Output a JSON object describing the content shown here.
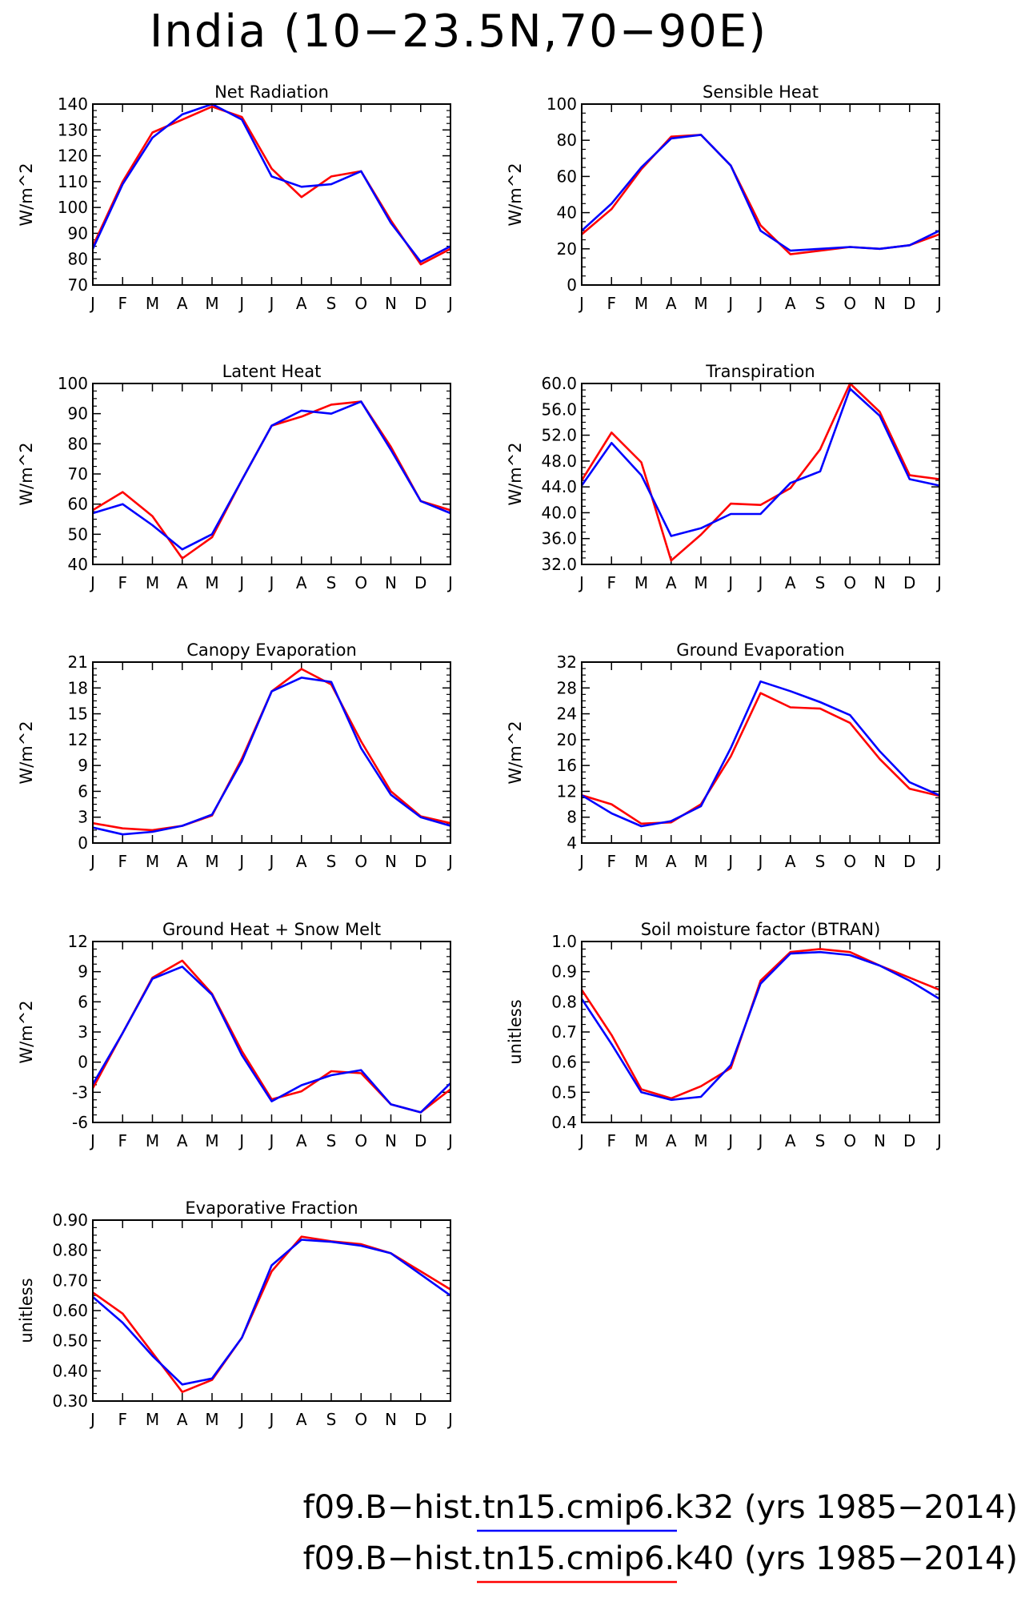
{
  "title": "India (10−23.5N,70−90E)",
  "colors": {
    "series_k32": "#0000ff",
    "series_k40": "#ff0000",
    "axes": "#000000"
  },
  "months": [
    "J",
    "F",
    "M",
    "A",
    "M",
    "J",
    "J",
    "A",
    "S",
    "O",
    "N",
    "D",
    "J"
  ],
  "legend": [
    {
      "label": "f09.B−hist.tn15.cmip6.k32",
      "years": "(yrs 1985−2014)",
      "color": "#0000ff"
    },
    {
      "label": "f09.B−hist.tn15.cmip6.k40",
      "years": "(yrs 1985−2014)",
      "color": "#ff0000"
    }
  ],
  "chart_data": [
    {
      "type": "line",
      "title": "Net Radiation",
      "ylabel": "W/m^2",
      "ylim": [
        70,
        140
      ],
      "yticks": [
        "70",
        "80",
        "90",
        "100",
        "110",
        "120",
        "130",
        "140"
      ],
      "x": [
        "J",
        "F",
        "M",
        "A",
        "M",
        "J",
        "J",
        "A",
        "S",
        "O",
        "N",
        "D",
        "J"
      ],
      "series": [
        {
          "values": [
            85,
            110,
            129,
            134,
            139,
            135,
            115,
            104,
            112,
            114,
            95,
            78,
            84
          ]
        },
        {
          "values": [
            84,
            109,
            127,
            136,
            140,
            134,
            112,
            108,
            109,
            114,
            94,
            79,
            85
          ]
        }
      ]
    },
    {
      "type": "line",
      "title": "Sensible Heat",
      "ylabel": "W/m^2",
      "ylim": [
        0,
        100
      ],
      "yticks": [
        "0",
        "20",
        "40",
        "60",
        "80",
        "100"
      ],
      "x": [
        "J",
        "F",
        "M",
        "A",
        "M",
        "J",
        "J",
        "A",
        "S",
        "O",
        "N",
        "D",
        "J"
      ],
      "series": [
        {
          "values": [
            28,
            42,
            64,
            82,
            83,
            66,
            33,
            17,
            19,
            21,
            20,
            22,
            28
          ]
        },
        {
          "values": [
            30,
            45,
            65,
            81,
            83,
            66,
            30,
            19,
            20,
            21,
            20,
            22,
            30
          ]
        }
      ]
    },
    {
      "type": "line",
      "title": "Latent Heat",
      "ylabel": "W/m^2",
      "ylim": [
        40,
        100
      ],
      "yticks": [
        "40",
        "50",
        "60",
        "70",
        "80",
        "90",
        "100"
      ],
      "x": [
        "J",
        "F",
        "M",
        "A",
        "M",
        "J",
        "J",
        "A",
        "S",
        "O",
        "N",
        "D",
        "J"
      ],
      "series": [
        {
          "values": [
            58,
            64,
            56,
            42,
            49,
            68,
            86,
            89,
            93,
            94,
            79,
            61,
            58
          ]
        },
        {
          "values": [
            57,
            60,
            53,
            45,
            50,
            68,
            86,
            91,
            90,
            94,
            78,
            61,
            57
          ]
        }
      ]
    },
    {
      "type": "line",
      "title": "Transpiration",
      "ylabel": "W/m^2",
      "ylim": [
        32,
        60
      ],
      "yticks": [
        "32.0",
        "36.0",
        "40.0",
        "44.0",
        "48.0",
        "52.0",
        "56.0",
        "60.0"
      ],
      "x": [
        "J",
        "F",
        "M",
        "A",
        "M",
        "J",
        "J",
        "A",
        "S",
        "O",
        "N",
        "D",
        "J"
      ],
      "series": [
        {
          "values": [
            45.0,
            52.4,
            47.8,
            32.6,
            36.6,
            41.4,
            41.2,
            43.8,
            49.8,
            60.0,
            55.6,
            45.8,
            45.2
          ]
        },
        {
          "values": [
            44.2,
            50.8,
            45.8,
            36.4,
            37.6,
            39.8,
            39.8,
            44.6,
            46.4,
            59.2,
            55.0,
            45.2,
            44.2
          ]
        }
      ]
    },
    {
      "type": "line",
      "title": "Canopy Evaporation",
      "ylabel": "W/m^2",
      "ylim": [
        0,
        21
      ],
      "yticks": [
        "0",
        "3",
        "6",
        "9",
        "12",
        "15",
        "18",
        "21"
      ],
      "x": [
        "J",
        "F",
        "M",
        "A",
        "M",
        "J",
        "J",
        "A",
        "S",
        "O",
        "N",
        "D",
        "J"
      ],
      "series": [
        {
          "values": [
            2.3,
            1.7,
            1.5,
            2.0,
            3.2,
            9.8,
            17.6,
            20.2,
            18.4,
            11.8,
            6.0,
            3.1,
            2.3
          ]
        },
        {
          "values": [
            1.8,
            1.0,
            1.3,
            2.0,
            3.3,
            9.5,
            17.6,
            19.2,
            18.7,
            11.0,
            5.6,
            3.0,
            2.0
          ]
        }
      ]
    },
    {
      "type": "line",
      "title": "Ground Evaporation",
      "ylabel": "W/m^2",
      "ylim": [
        4,
        32
      ],
      "yticks": [
        "4",
        "8",
        "12",
        "16",
        "20",
        "24",
        "28",
        "32"
      ],
      "x": [
        "J",
        "F",
        "M",
        "A",
        "M",
        "J",
        "J",
        "A",
        "S",
        "O",
        "N",
        "D",
        "J"
      ],
      "series": [
        {
          "values": [
            11.4,
            10.0,
            7.0,
            7.2,
            10.0,
            17.4,
            27.2,
            25.0,
            24.8,
            22.6,
            17.0,
            12.4,
            11.3
          ]
        },
        {
          "values": [
            11.4,
            8.6,
            6.6,
            7.4,
            9.7,
            18.7,
            29.0,
            27.5,
            25.8,
            23.8,
            18.2,
            13.4,
            11.4
          ]
        }
      ]
    },
    {
      "type": "line",
      "title": "Ground Heat + Snow Melt",
      "ylabel": "W/m^2",
      "ylim": [
        -6,
        12
      ],
      "yticks": [
        "-6",
        "-3",
        "0",
        "3",
        "6",
        "9",
        "12"
      ],
      "x": [
        "J",
        "F",
        "M",
        "A",
        "M",
        "J",
        "J",
        "A",
        "S",
        "O",
        "N",
        "D",
        "J"
      ],
      "series": [
        {
          "values": [
            -2.6,
            2.9,
            8.4,
            10.1,
            6.8,
            1.1,
            -3.7,
            -2.9,
            -0.9,
            -1.1,
            -4.2,
            -5.0,
            -2.7
          ]
        },
        {
          "values": [
            -2.2,
            2.9,
            8.3,
            9.5,
            6.7,
            0.7,
            -3.9,
            -2.3,
            -1.3,
            -0.8,
            -4.2,
            -5.0,
            -2.1
          ]
        }
      ]
    },
    {
      "type": "line",
      "title": "Soil moisture factor (BTRAN)",
      "ylabel": "unitless",
      "ylim": [
        0.4,
        1.0
      ],
      "yticks": [
        "0.4",
        "0.5",
        "0.6",
        "0.7",
        "0.8",
        "0.9",
        "1.0"
      ],
      "x": [
        "J",
        "F",
        "M",
        "A",
        "M",
        "J",
        "J",
        "A",
        "S",
        "O",
        "N",
        "D",
        "J"
      ],
      "series": [
        {
          "values": [
            0.84,
            0.69,
            0.51,
            0.48,
            0.52,
            0.58,
            0.87,
            0.965,
            0.975,
            0.965,
            0.92,
            0.88,
            0.84
          ]
        },
        {
          "values": [
            0.81,
            0.66,
            0.5,
            0.475,
            0.485,
            0.59,
            0.86,
            0.96,
            0.965,
            0.955,
            0.92,
            0.87,
            0.81
          ]
        }
      ]
    },
    {
      "type": "line",
      "title": "Evaporative Fraction",
      "ylabel": "unitless",
      "ylim": [
        0.3,
        0.9
      ],
      "yticks": [
        "0.30",
        "0.40",
        "0.50",
        "0.60",
        "0.70",
        "0.80",
        "0.90"
      ],
      "x": [
        "J",
        "F",
        "M",
        "A",
        "M",
        "J",
        "J",
        "A",
        "S",
        "O",
        "N",
        "D",
        "J"
      ],
      "series": [
        {
          "values": [
            0.66,
            0.59,
            0.46,
            0.33,
            0.37,
            0.51,
            0.73,
            0.845,
            0.83,
            0.82,
            0.79,
            0.73,
            0.67
          ]
        },
        {
          "values": [
            0.645,
            0.56,
            0.45,
            0.355,
            0.375,
            0.51,
            0.75,
            0.835,
            0.828,
            0.815,
            0.79,
            0.72,
            0.65
          ]
        }
      ]
    }
  ]
}
